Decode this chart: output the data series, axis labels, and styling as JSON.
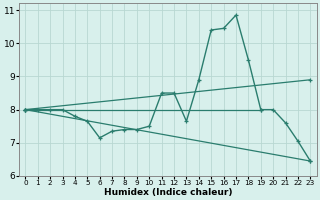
{
  "xlabel": "Humidex (Indice chaleur)",
  "xlim": [
    -0.5,
    23.5
  ],
  "ylim": [
    6,
    11.2
  ],
  "yticks": [
    6,
    7,
    8,
    9,
    10,
    11
  ],
  "xticks": [
    0,
    1,
    2,
    3,
    4,
    5,
    6,
    7,
    8,
    9,
    10,
    11,
    12,
    13,
    14,
    15,
    16,
    17,
    18,
    19,
    20,
    21,
    22,
    23
  ],
  "line_color": "#2a7d6e",
  "bg_color": "#d8f0ec",
  "grid_color": "#b8d8d2",
  "main_line": {
    "x": [
      0,
      1,
      2,
      3,
      4,
      5,
      6,
      7,
      8,
      9,
      10,
      11,
      12,
      13,
      14,
      15,
      16,
      17,
      18,
      19,
      20,
      21,
      22,
      23
    ],
    "y": [
      8.0,
      8.0,
      8.0,
      8.0,
      7.8,
      7.65,
      7.15,
      7.35,
      7.4,
      7.4,
      7.5,
      8.5,
      8.5,
      7.65,
      8.9,
      10.4,
      10.45,
      10.85,
      9.5,
      8.0,
      8.0,
      7.6,
      7.05,
      6.45
    ]
  },
  "straight_lines": [
    {
      "x": [
        0,
        19
      ],
      "y": [
        8.0,
        8.0
      ]
    },
    {
      "x": [
        0,
        23
      ],
      "y": [
        8.0,
        6.45
      ]
    },
    {
      "x": [
        0,
        23
      ],
      "y": [
        8.0,
        8.9
      ]
    }
  ]
}
